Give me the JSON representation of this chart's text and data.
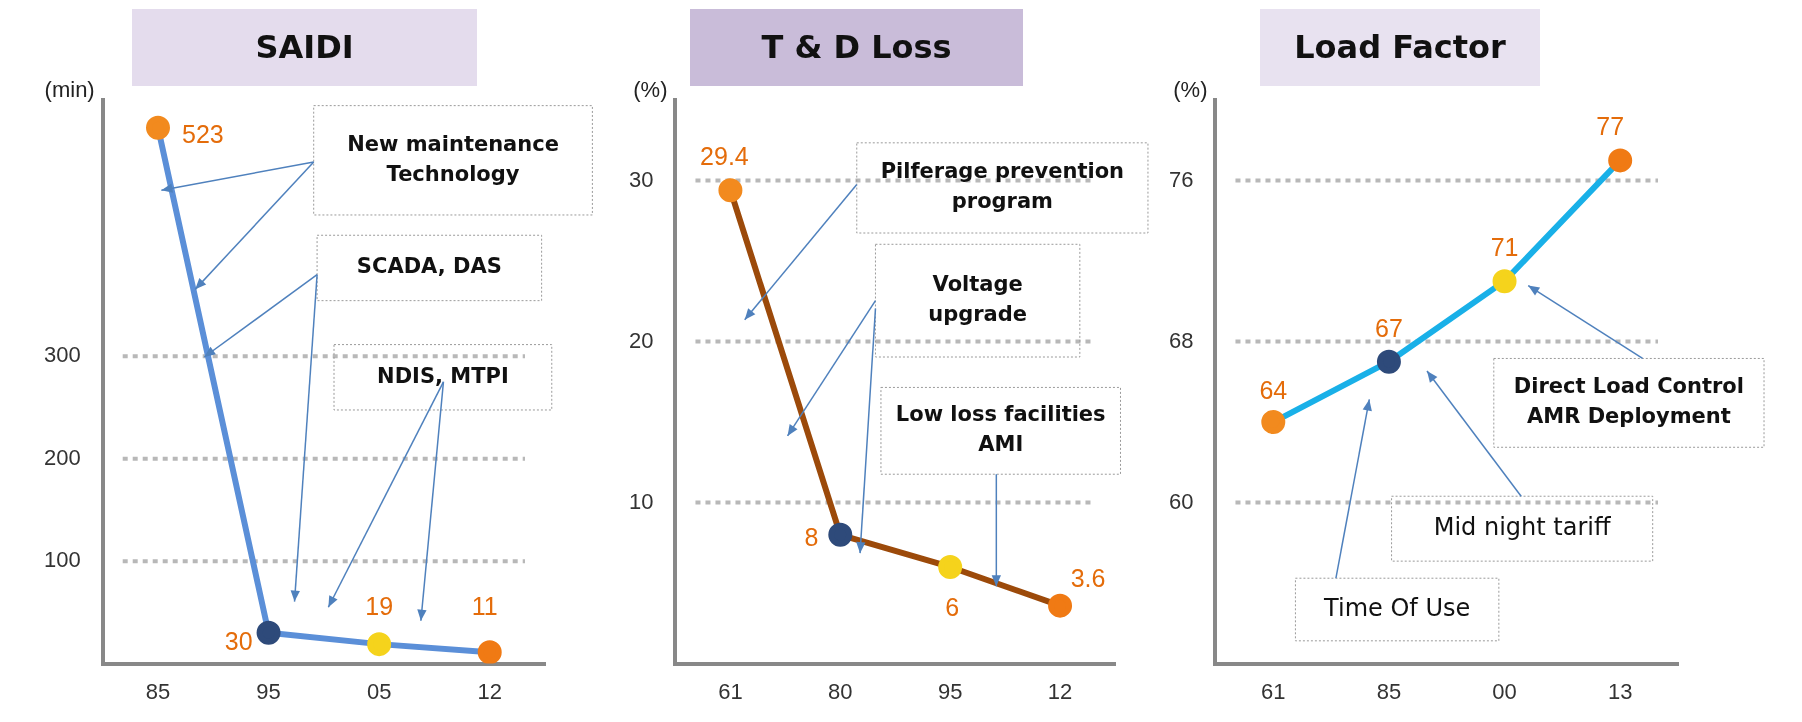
{
  "chart_data": [
    {
      "type": "line",
      "title": "SAIDI",
      "ylabel": "(min)",
      "categories": [
        "85",
        "95",
        "05",
        "12"
      ],
      "series": [
        {
          "color": "#5b8fd8",
          "colors": [
            "#f28a1e",
            "#2e4a7a",
            "#f5d31c",
            "#f07a14"
          ],
          "values": [
            523,
            30,
            19,
            11
          ]
        }
      ],
      "ylim": [
        0,
        550
      ],
      "yticks": [
        100,
        200,
        300
      ],
      "grid": "y",
      "marker": "circle",
      "data_labels": true,
      "legend": false,
      "annotations": [
        "New maintenance Technology",
        "SCADA, DAS",
        "NDIS, MTPI"
      ]
    },
    {
      "type": "line",
      "title": "T & D Loss",
      "ylabel": "(%)",
      "categories": [
        "61",
        "80",
        "95",
        "12"
      ],
      "series": [
        {
          "color": "#9c4a0a",
          "colors": [
            "#f28a1e",
            "#2e4a7a",
            "#f5d31c",
            "#f07a14"
          ],
          "values": [
            29.4,
            8,
            6,
            3.6
          ]
        }
      ],
      "ylim": [
        0,
        35
      ],
      "yticks": [
        10,
        20,
        30
      ],
      "grid": "y",
      "marker": "circle",
      "data_labels": true,
      "legend": false,
      "annotations": [
        "Pilferage prevention program",
        "Voltage upgrade",
        {
          "text": "Low loss facilities AMI",
          "y": 4.8
        }
      ]
    },
    {
      "type": "line",
      "title": "Load Factor",
      "ylabel": "(%)",
      "categories": [
        "61",
        "85",
        "00",
        "13"
      ],
      "series": [
        {
          "color": "#19b0e8",
          "colors": [
            "#f28a1e",
            "#2e4a7a",
            "#f5d31c",
            "#f07a14"
          ],
          "values": [
            64,
            67,
            71,
            77
          ]
        }
      ],
      "ylim": [
        52,
        80
      ],
      "yticks": [
        60,
        68,
        76
      ],
      "grid": "y",
      "marker": "circle",
      "data_labels": true,
      "legend": false,
      "annotations": [
        "Direct Load Control AMR Deployment",
        "Mid night tariff",
        "Time Of Use"
      ]
    }
  ]
}
